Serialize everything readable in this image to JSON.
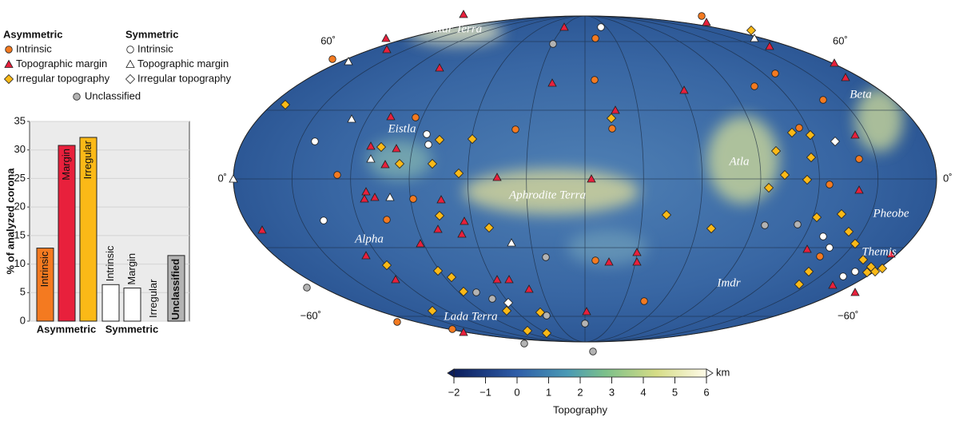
{
  "chart_data": [
    {
      "type": "bar",
      "ylabel": "% of analyzed corona",
      "categories": [
        "Intrinsic",
        "Margin",
        "Irregular",
        "Intrinsic",
        "Margin",
        "Irregular",
        "Unclassified"
      ],
      "values": [
        12.8,
        30.8,
        32.2,
        6.4,
        5.8,
        0,
        11.5
      ],
      "colors": [
        "#f47a20",
        "#e8203c",
        "#fbb917",
        "#ffffff",
        "#ffffff",
        "#ffffff",
        "#b3b3b3"
      ],
      "groups": [
        "Asymmetric",
        "Symmetric"
      ],
      "ylim": [
        0,
        35
      ],
      "yticks": [
        0,
        5,
        10,
        15,
        20,
        25,
        30,
        35
      ],
      "grid": true
    },
    {
      "type": "map",
      "legend": {
        "asymmetric": {
          "title": "Asymmetric",
          "items": [
            "Intrinsic",
            "Topographic margin",
            "Irregular topography"
          ]
        },
        "symmetric": {
          "title": "Symmetric",
          "items": [
            "Intrinsic",
            "Topographic margin",
            "Irregular topography"
          ]
        },
        "unclassified": "Unclassified"
      },
      "regions": [
        "Ishtar Terra",
        "Eistla",
        "Atla",
        "Beta",
        "Aphrodite Terra",
        "Pheobe",
        "Alpha",
        "Themis",
        "Imdr",
        "Lada Terra"
      ],
      "lat_ticks": [
        {
          "value": 60,
          "label": "60˚"
        },
        {
          "value": 0,
          "label": "0˚"
        },
        {
          "value": -60,
          "label": "−60˚"
        }
      ],
      "colorbar": {
        "xlim": [
          -2,
          6
        ],
        "xticks": [
          {
            "value": -2,
            "label": "−2"
          },
          {
            "value": -1,
            "label": "−1"
          },
          0,
          1,
          2,
          3,
          4,
          5,
          6
        ],
        "unit": "km",
        "label": "Topography"
      }
    }
  ]
}
